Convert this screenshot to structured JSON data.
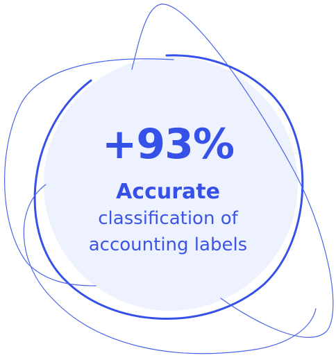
{
  "stat": {
    "value": "+93%",
    "headline": "Accurate",
    "description_line1": "classification of",
    "description_line2": "accounting labels"
  },
  "colors": {
    "accent": "#3551e8",
    "fill": "#eef1fe",
    "background": "#ffffff"
  }
}
